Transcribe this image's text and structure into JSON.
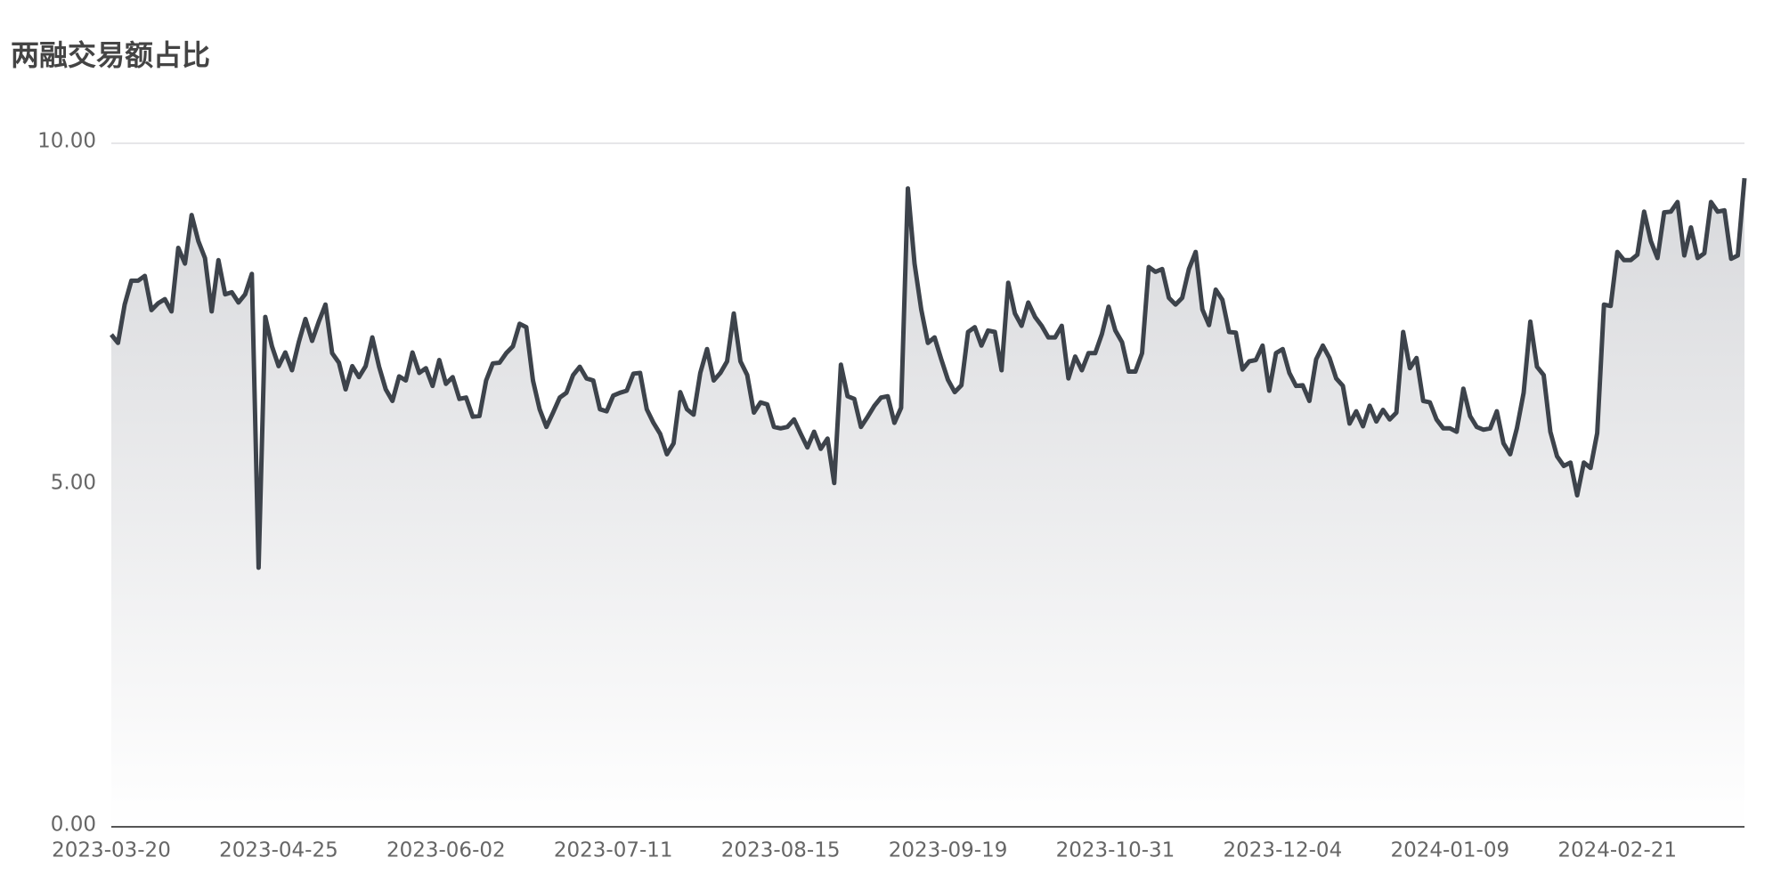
{
  "chart_data": {
    "type": "line",
    "title": "两融交易额占比",
    "categories": [
      "2023-03-20",
      null,
      null,
      null,
      null,
      null,
      null,
      null,
      null,
      null,
      null,
      null,
      null,
      null,
      null,
      null,
      null,
      null,
      null,
      null,
      null,
      null,
      null,
      null,
      null,
      "2023-04-25",
      null,
      null,
      null,
      null,
      null,
      null,
      null,
      null,
      null,
      null,
      null,
      null,
      null,
      null,
      null,
      null,
      null,
      null,
      null,
      null,
      null,
      null,
      null,
      null,
      "2023-06-02",
      null,
      null,
      null,
      null,
      null,
      null,
      null,
      null,
      null,
      null,
      null,
      null,
      null,
      null,
      null,
      null,
      null,
      null,
      null,
      null,
      null,
      null,
      null,
      null,
      "2023-07-11",
      null,
      null,
      null,
      null,
      null,
      null,
      null,
      null,
      null,
      null,
      null,
      null,
      null,
      null,
      null,
      null,
      null,
      null,
      null,
      null,
      null,
      null,
      null,
      null,
      "2023-08-15",
      null,
      null,
      null,
      null,
      null,
      null,
      null,
      null,
      null,
      null,
      null,
      null,
      null,
      null,
      null,
      null,
      null,
      null,
      null,
      null,
      null,
      null,
      null,
      null,
      "2023-09-19",
      null,
      null,
      null,
      null,
      null,
      null,
      null,
      null,
      null,
      null,
      null,
      null,
      null,
      null,
      null,
      null,
      null,
      null,
      null,
      null,
      null,
      null,
      null,
      null,
      "2023-10-31",
      null,
      null,
      null,
      null,
      null,
      null,
      null,
      null,
      null,
      null,
      null,
      null,
      null,
      null,
      null,
      null,
      null,
      null,
      null,
      null,
      null,
      null,
      null,
      null,
      "2023-12-04",
      null,
      null,
      null,
      null,
      null,
      null,
      null,
      null,
      null,
      null,
      null,
      null,
      null,
      null,
      null,
      null,
      null,
      null,
      null,
      null,
      null,
      null,
      null,
      null,
      "2024-01-09",
      null,
      null,
      null,
      null,
      null,
      null,
      null,
      null,
      null,
      null,
      null,
      null,
      null,
      null,
      null,
      null,
      null,
      null,
      null,
      null,
      null,
      null,
      null,
      null,
      "2024-02-21",
      null,
      null,
      null,
      null,
      null,
      null,
      null,
      null,
      null,
      null,
      null,
      null,
      null,
      null,
      null,
      null,
      null,
      null,
      null
    ],
    "values": [
      7.2,
      7.08,
      7.64,
      7.99,
      7.99,
      8.06,
      7.56,
      7.66,
      7.72,
      7.54,
      8.47,
      8.24,
      8.95,
      8.57,
      8.32,
      7.54,
      8.29,
      7.79,
      7.82,
      7.67,
      7.79,
      8.09,
      3.79,
      7.46,
      7.03,
      6.74,
      6.94,
      6.68,
      7.09,
      7.43,
      7.11,
      7.39,
      7.64,
      6.93,
      6.79,
      6.4,
      6.74,
      6.58,
      6.74,
      7.16,
      6.73,
      6.4,
      6.23,
      6.59,
      6.53,
      6.94,
      6.64,
      6.71,
      6.45,
      6.83,
      6.48,
      6.58,
      6.26,
      6.28,
      6.0,
      6.01,
      6.53,
      6.78,
      6.79,
      6.93,
      7.03,
      7.36,
      7.31,
      6.53,
      6.11,
      5.85,
      6.06,
      6.28,
      6.35,
      6.61,
      6.73,
      6.56,
      6.53,
      6.11,
      6.08,
      6.31,
      6.35,
      6.38,
      6.63,
      6.64,
      6.11,
      5.91,
      5.75,
      5.45,
      5.61,
      6.36,
      6.11,
      6.03,
      6.64,
      6.99,
      6.53,
      6.64,
      6.81,
      7.51,
      6.81,
      6.61,
      6.06,
      6.21,
      6.18,
      5.85,
      5.83,
      5.85,
      5.96,
      5.75,
      5.55,
      5.78,
      5.53,
      5.68,
      5.03,
      6.76,
      6.3,
      6.26,
      5.85,
      6.0,
      6.16,
      6.28,
      6.3,
      5.91,
      6.13,
      9.34,
      8.24,
      7.57,
      7.08,
      7.16,
      6.84,
      6.54,
      6.36,
      6.46,
      7.24,
      7.31,
      7.04,
      7.26,
      7.24,
      6.68,
      7.96,
      7.51,
      7.33,
      7.67,
      7.46,
      7.33,
      7.16,
      7.16,
      7.33,
      6.56,
      6.88,
      6.68,
      6.93,
      6.93,
      7.21,
      7.61,
      7.26,
      7.09,
      6.66,
      6.66,
      6.93,
      8.19,
      8.12,
      8.16,
      7.74,
      7.64,
      7.74,
      8.16,
      8.41,
      7.57,
      7.34,
      7.86,
      7.71,
      7.24,
      7.23,
      6.69,
      6.81,
      6.83,
      7.04,
      6.38,
      6.93,
      6.99,
      6.64,
      6.45,
      6.46,
      6.23,
      6.84,
      7.04,
      6.86,
      6.56,
      6.45,
      5.9,
      6.08,
      5.86,
      6.16,
      5.93,
      6.1,
      5.96,
      6.06,
      7.24,
      6.71,
      6.86,
      6.23,
      6.21,
      5.96,
      5.83,
      5.83,
      5.78,
      6.41,
      6.01,
      5.85,
      5.81,
      5.83,
      6.08,
      5.61,
      5.45,
      5.83,
      6.35,
      7.39,
      6.73,
      6.61,
      5.78,
      5.42,
      5.28,
      5.33,
      4.85,
      5.33,
      5.25,
      5.76,
      7.64,
      7.62,
      8.41,
      8.29,
      8.29,
      8.37,
      9.0,
      8.57,
      8.32,
      8.99,
      9.0,
      9.14,
      8.36,
      8.77,
      8.32,
      8.39,
      9.14,
      9.0,
      9.02,
      8.31,
      8.36,
      9.49
    ],
    "color": "#3d434b",
    "area": true,
    "ylim": [
      0,
      10
    ],
    "yticks": [
      {
        "value": 0,
        "label": "0.00"
      },
      {
        "value": 5,
        "label": "5.00"
      },
      {
        "value": 10,
        "label": "10.00"
      }
    ],
    "grid": true
  }
}
